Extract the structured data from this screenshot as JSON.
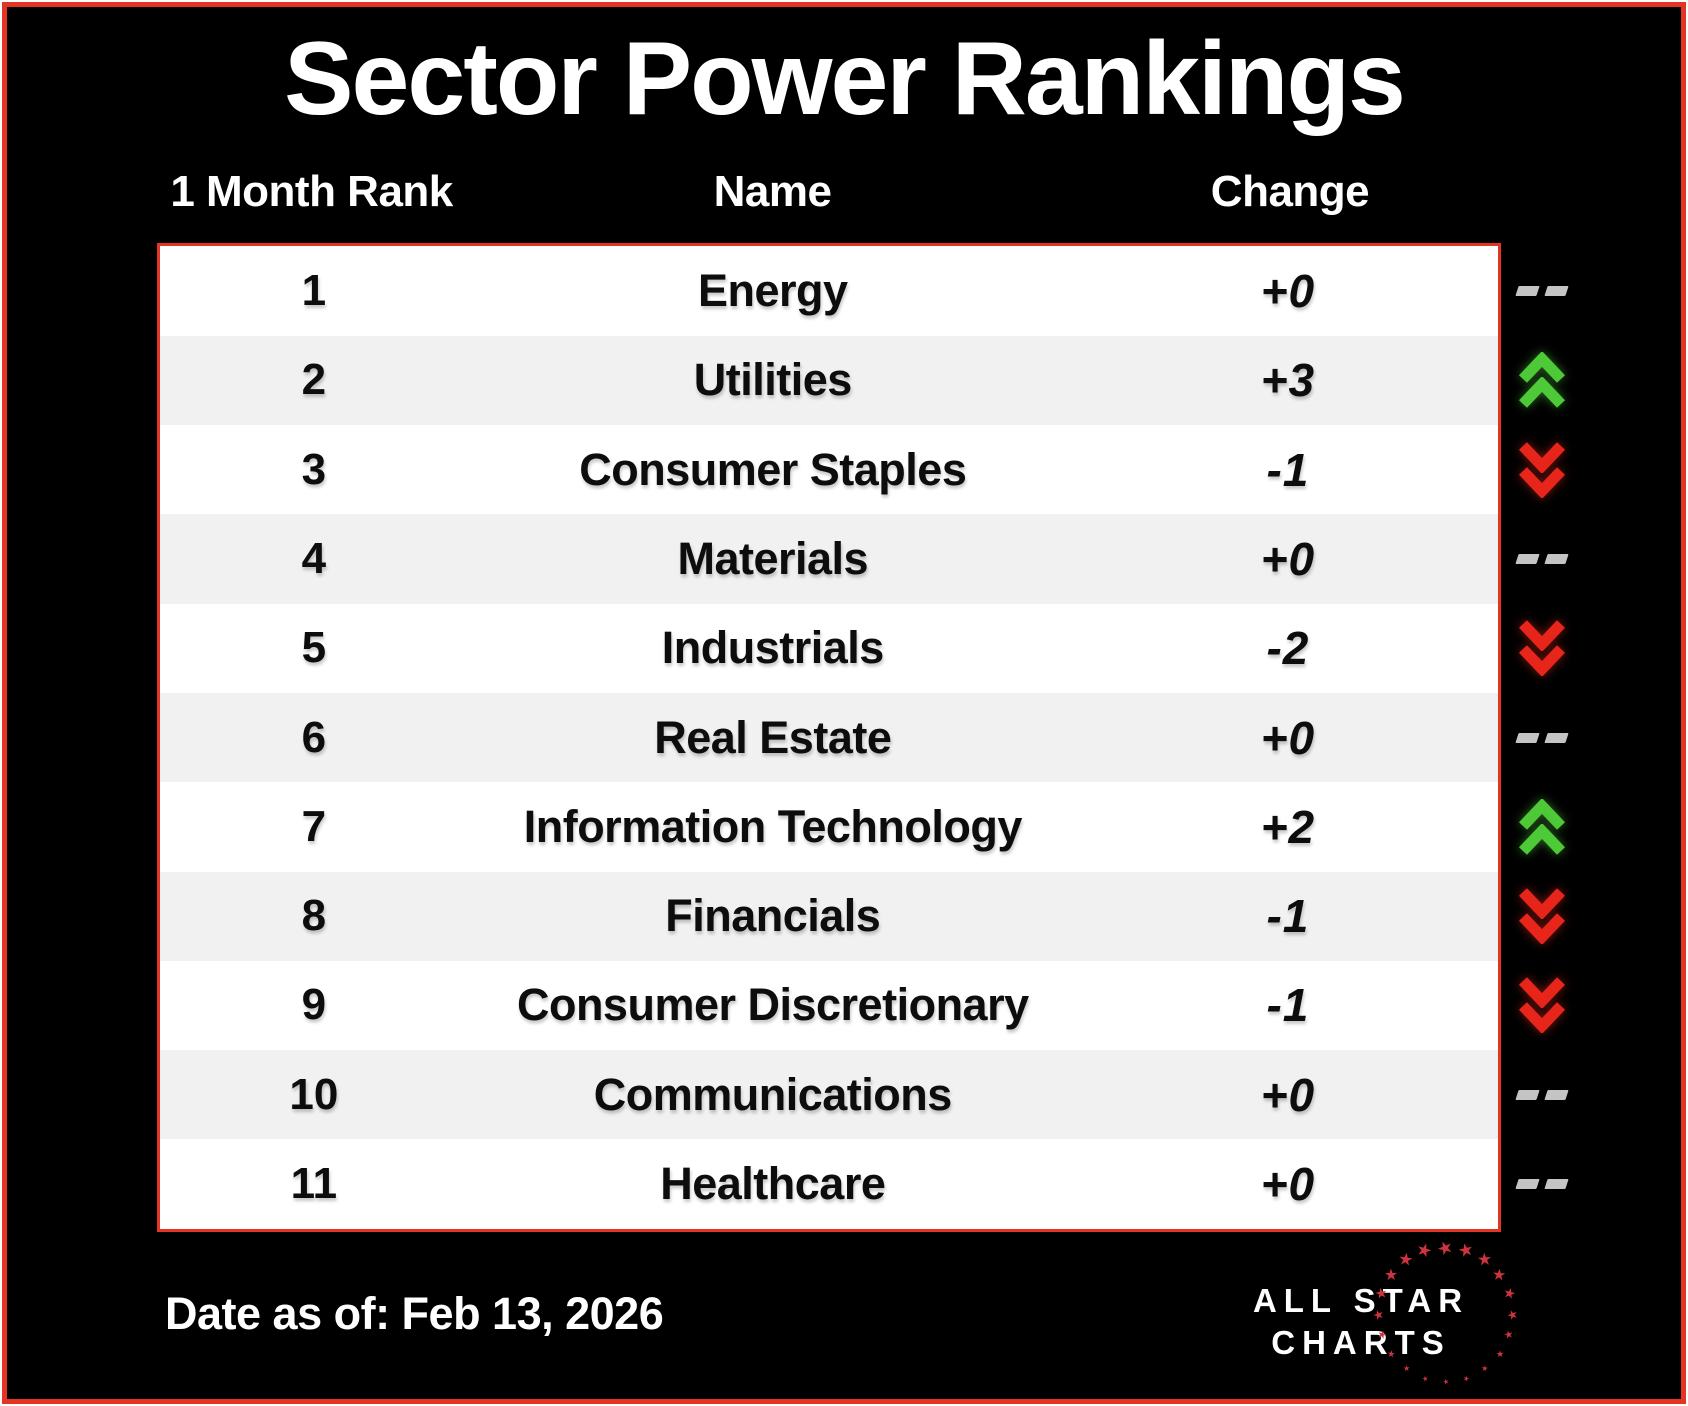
{
  "title": "Sector Power Rankings",
  "columns": {
    "rank": "1 Month Rank",
    "name": "Name",
    "change": "Change"
  },
  "chart_data": {
    "type": "table",
    "title": "Sector Power Rankings",
    "columns": [
      "1 Month Rank",
      "Name",
      "Change"
    ],
    "rows": [
      {
        "rank": "1",
        "name": "Energy",
        "change": "+0",
        "direction": "flat"
      },
      {
        "rank": "2",
        "name": "Utilities",
        "change": "+3",
        "direction": "up"
      },
      {
        "rank": "3",
        "name": "Consumer Staples",
        "change": "-1",
        "direction": "down"
      },
      {
        "rank": "4",
        "name": "Materials",
        "change": "+0",
        "direction": "flat"
      },
      {
        "rank": "5",
        "name": "Industrials",
        "change": "-2",
        "direction": "down"
      },
      {
        "rank": "6",
        "name": "Real Estate",
        "change": "+0",
        "direction": "flat"
      },
      {
        "rank": "7",
        "name": "Information Technology",
        "change": "+2",
        "direction": "up"
      },
      {
        "rank": "8",
        "name": "Financials",
        "change": "-1",
        "direction": "down"
      },
      {
        "rank": "9",
        "name": "Consumer Discretionary",
        "change": "-1",
        "direction": "down"
      },
      {
        "rank": "10",
        "name": "Communications",
        "change": "+0",
        "direction": "flat"
      },
      {
        "rank": "11",
        "name": "Healthcare",
        "change": "+0",
        "direction": "flat"
      }
    ]
  },
  "footer": {
    "date": "Date as of: Feb 13, 2026"
  },
  "logo": {
    "line1": "ALL STAR",
    "line2": "CHARTS",
    "star_glyph": "★",
    "star_count": 20,
    "star_color": "#ce333e"
  },
  "colors": {
    "frame_border": "#e43424",
    "table_border": "#e43424",
    "up_arrow": "#4ec937",
    "down_arrow": "#e8251a",
    "no_change_dash": "#c4c4c4",
    "alt_row": "#f1f1f2",
    "background": "#000000"
  }
}
